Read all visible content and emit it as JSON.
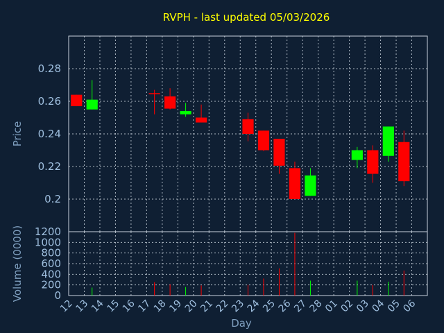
{
  "chart_data": {
    "type": "candlestick",
    "title": "RVPH - last updated 05/03/2026",
    "xlabel": "Day",
    "price_panel": {
      "ylabel": "Price",
      "ylim": [
        0.18,
        0.3
      ],
      "yticks": [
        0.2,
        0.22,
        0.24,
        0.26,
        0.28
      ],
      "ytick_labels": [
        "0.2",
        "0.22",
        "0.24",
        "0.26",
        "0.28"
      ],
      "grid": true
    },
    "volume_panel": {
      "ylabel": "Volume (0000)",
      "ylim": [
        0,
        1200
      ],
      "yticks": [
        0,
        200,
        400,
        600,
        800,
        1000,
        1200
      ],
      "ytick_labels": [
        "0",
        "200",
        "400",
        "600",
        "800",
        "1000",
        "1200"
      ],
      "grid": true
    },
    "x_ticks": [
      "12",
      "13",
      "14",
      "15",
      "16",
      "17",
      "18",
      "19",
      "20",
      "21",
      "22",
      "23",
      "24",
      "25",
      "26",
      "27",
      "28",
      "01",
      "02",
      "03",
      "04",
      "05",
      "06"
    ],
    "colors": {
      "up": "#00ff00",
      "down": "#ff0000",
      "title": "#ffff00",
      "background": "#0f1f33",
      "axis_text": "#7f9fbf"
    },
    "candles": [
      {
        "day": "12",
        "open": 0.264,
        "high": 0.264,
        "low": 0.257,
        "close": 0.257,
        "volume": 0
      },
      {
        "day": "13",
        "open": 0.255,
        "high": 0.273,
        "low": 0.255,
        "close": 0.261,
        "volume": 150
      },
      {
        "day": "17",
        "open": 0.265,
        "high": 0.267,
        "low": 0.252,
        "close": 0.2645,
        "volume": 250
      },
      {
        "day": "18",
        "open": 0.263,
        "high": 0.268,
        "low": 0.255,
        "close": 0.2555,
        "volume": 210
      },
      {
        "day": "19",
        "open": 0.252,
        "high": 0.259,
        "low": 0.2505,
        "close": 0.254,
        "volume": 160
      },
      {
        "day": "20",
        "open": 0.25,
        "high": 0.258,
        "low": 0.247,
        "close": 0.247,
        "volume": 190
      },
      {
        "day": "23",
        "open": 0.249,
        "high": 0.253,
        "low": 0.2355,
        "close": 0.24,
        "volume": 200
      },
      {
        "day": "24",
        "open": 0.242,
        "high": 0.242,
        "low": 0.2295,
        "close": 0.23,
        "volume": 320
      },
      {
        "day": "25",
        "open": 0.237,
        "high": 0.237,
        "low": 0.2155,
        "close": 0.2205,
        "volume": 510
      },
      {
        "day": "26",
        "open": 0.219,
        "high": 0.223,
        "low": 0.2,
        "close": 0.2,
        "volume": 1180
      },
      {
        "day": "27",
        "open": 0.202,
        "high": 0.219,
        "low": 0.202,
        "close": 0.2145,
        "volume": 280
      },
      {
        "day": "02",
        "open": 0.224,
        "high": 0.232,
        "low": 0.219,
        "close": 0.23,
        "volume": 280
      },
      {
        "day": "03",
        "open": 0.23,
        "high": 0.233,
        "low": 0.21,
        "close": 0.2155,
        "volume": 200
      },
      {
        "day": "04",
        "open": 0.2265,
        "high": 0.2445,
        "low": 0.223,
        "close": 0.2445,
        "volume": 260
      },
      {
        "day": "05",
        "open": 0.235,
        "high": 0.242,
        "low": 0.208,
        "close": 0.211,
        "volume": 470
      }
    ]
  }
}
